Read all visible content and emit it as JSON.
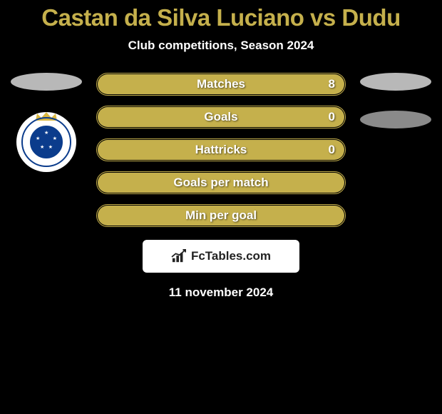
{
  "header": {
    "title": "Castan da Silva Luciano vs Dudu",
    "title_color": "#c5b04c",
    "title_fontsize": 33,
    "subtitle": "Club competitions, Season 2024",
    "subtitle_fontsize": 17,
    "padding_top": 6
  },
  "left_side": {
    "placeholder_bg": "#b8b8b8",
    "shield": {
      "ring_text_color": "#0b3c8c",
      "crown_color": "#d9b742"
    }
  },
  "right_side": {
    "placeholder_bg_1": "#b8b8b8",
    "placeholder_bg_2": "#8a8a8a"
  },
  "stats": {
    "bar_border_color": "#c5b04c",
    "bar_fill_color": "#c5b04c",
    "label_fontsize": 17,
    "value_fontsize": 17,
    "rows": [
      {
        "label": "Matches",
        "left": "",
        "right": "8",
        "fill_left_pct": 0,
        "fill_right_pct": 100
      },
      {
        "label": "Goals",
        "left": "",
        "right": "0",
        "fill_left_pct": 0,
        "fill_right_pct": 100
      },
      {
        "label": "Hattricks",
        "left": "",
        "right": "0",
        "fill_left_pct": 0,
        "fill_right_pct": 100
      },
      {
        "label": "Goals per match",
        "left": "",
        "right": "",
        "fill_left_pct": 0,
        "fill_right_pct": 100
      },
      {
        "label": "Min per goal",
        "left": "",
        "right": "",
        "fill_left_pct": 0,
        "fill_right_pct": 100
      }
    ]
  },
  "attribution": {
    "box_bg": "#ffffff",
    "text": "FcTables.com",
    "text_color": "#222222",
    "text_fontsize": 17,
    "icon_color": "#222222"
  },
  "footer": {
    "date": "11 november 2024",
    "date_fontsize": 17
  }
}
